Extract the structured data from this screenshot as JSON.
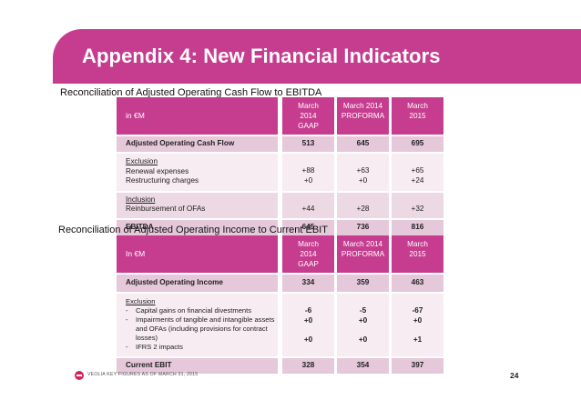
{
  "title": "Appendix 4: New Financial Indicators",
  "section1": {
    "title": "Reconciliation of Adjusted Operating Cash Flow to EBITDA",
    "header": {
      "label": "in €M",
      "cols": [
        [
          "March",
          "2014",
          "GAAP"
        ],
        [
          "March 2014",
          "PROFORMA"
        ],
        [
          "March",
          "2015"
        ]
      ]
    },
    "rows": {
      "acf": {
        "label": "Adjusted Operating Cash Flow",
        "values": [
          "513",
          "645",
          "695"
        ]
      },
      "exclusion": {
        "heading": "Exclusion",
        "items": [
          {
            "label": "Renewal expenses",
            "values": [
              "+88",
              "+63",
              "+65"
            ]
          },
          {
            "label": "Restructuring charges",
            "values": [
              "+0",
              "+0",
              "+24"
            ]
          }
        ]
      },
      "inclusion": {
        "heading": "Inclusion",
        "items": [
          {
            "label": "Reinbursement of OFAs",
            "values": [
              "+44",
              "+28",
              "+32"
            ]
          }
        ]
      },
      "ebitda": {
        "label": "EBITDA",
        "values": [
          "645",
          "736",
          "816"
        ]
      }
    }
  },
  "section2": {
    "title": "Reconciliation of  Adjusted Operating Income to Current EBIT",
    "header": {
      "label": "In €M",
      "cols": [
        [
          "March",
          "2014",
          "GAAP"
        ],
        [
          "March 2014",
          "PROFORMA"
        ],
        [
          "March",
          "2015"
        ]
      ]
    },
    "rows": {
      "aoi": {
        "label": "Adjusted Operating Income",
        "values": [
          "334",
          "359",
          "463"
        ]
      },
      "exclusion": {
        "heading": "Exclusion",
        "items": [
          {
            "dash": "-",
            "label": "Capital gains on financial divestments",
            "values": [
              "-6",
              "-5",
              "-67"
            ]
          },
          {
            "dash": "-",
            "label": "Impairments of tangible and intangible assets and OFAs (including provisions for contract losses)",
            "values": [
              "+0",
              "+0",
              "+0"
            ]
          },
          {
            "dash": "-",
            "label": "IFRS 2 impacts",
            "values": [
              "+0",
              "+0",
              "+1"
            ]
          }
        ]
      },
      "ebit": {
        "label": "Current EBIT",
        "values": [
          "328",
          "354",
          "397"
        ]
      }
    }
  },
  "footer": {
    "text": "VEOLIA KEY FIGURES AS OF MARCH 31, 2015",
    "page": "24"
  }
}
